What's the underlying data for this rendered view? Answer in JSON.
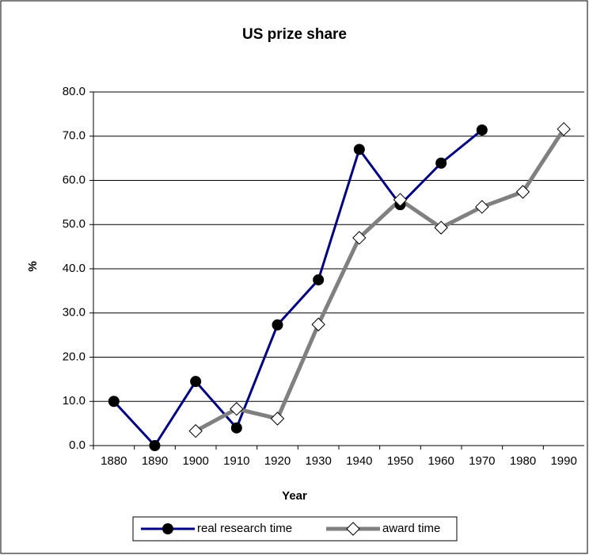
{
  "chart_data": {
    "type": "line",
    "title": "US prize share",
    "x_label": "Year",
    "y_label": "%",
    "categories": [
      "1880",
      "1890",
      "1900",
      "1910",
      "1920",
      "1930",
      "1940",
      "1950",
      "1960",
      "1970",
      "1980",
      "1990"
    ],
    "series": [
      {
        "name": "real research time",
        "color": "#000080",
        "marker": "circle",
        "values": [
          10.0,
          0.0,
          14.5,
          4.0,
          27.3,
          37.5,
          67.0,
          54.5,
          63.9,
          71.4,
          null,
          null
        ]
      },
      {
        "name": "award time",
        "color": "#808080",
        "marker": "diamond",
        "values": [
          null,
          null,
          3.3,
          8.3,
          6.1,
          27.4,
          47.0,
          55.6,
          49.3,
          54.0,
          57.4,
          71.6
        ]
      }
    ],
    "ylim": [
      0,
      80
    ],
    "yticks": [
      {
        "value": 0,
        "label": "0.0"
      },
      {
        "value": 10,
        "label": "10.0"
      },
      {
        "value": 20,
        "label": "20.0"
      },
      {
        "value": 30,
        "label": "30.0"
      },
      {
        "value": 40,
        "label": "40.0"
      },
      {
        "value": 50,
        "label": "50.0"
      },
      {
        "value": 60,
        "label": "60.0"
      },
      {
        "value": 70,
        "label": "70.0"
      },
      {
        "value": 80,
        "label": "80.0"
      }
    ],
    "grid": true,
    "legend": "bottom"
  }
}
